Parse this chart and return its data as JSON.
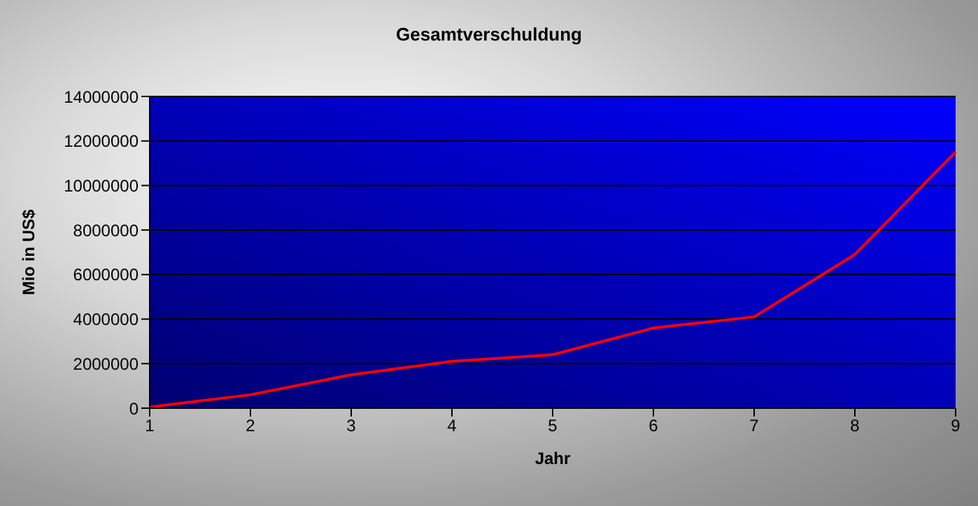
{
  "chart_data": {
    "type": "line",
    "title": "Gesamtverschuldung",
    "xlabel": "Jahr",
    "ylabel": "Mio in US$",
    "categories": [
      "1",
      "2",
      "3",
      "4",
      "5",
      "6",
      "7",
      "8",
      "9"
    ],
    "series": [
      {
        "color": "#ff0000",
        "values": [
          50000,
          600000,
          1500000,
          2100000,
          2400000,
          3600000,
          4100000,
          6900000,
          11500000
        ]
      }
    ],
    "ylim": [
      0,
      14000000
    ],
    "yticks": [
      0,
      2000000,
      4000000,
      6000000,
      8000000,
      10000000,
      12000000,
      14000000
    ],
    "grid": "y",
    "legend": false,
    "marker": "none",
    "line_style": "solid"
  }
}
